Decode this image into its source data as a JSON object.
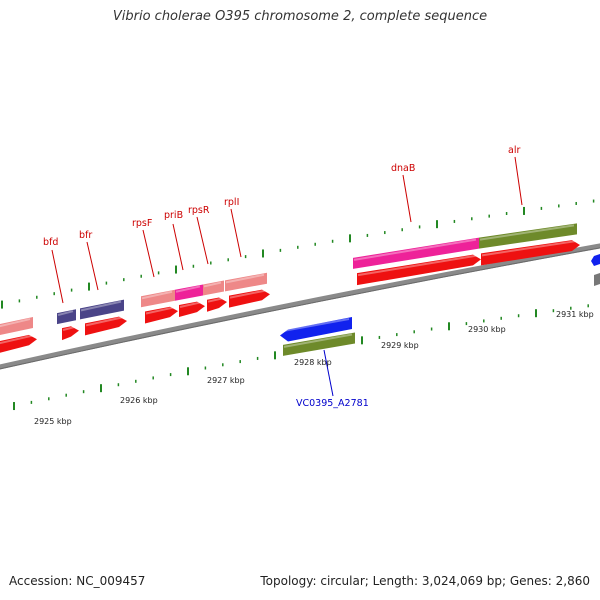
{
  "title": "Vibrio cholerae O395 chromosome 2, complete sequence",
  "accession": "Accession: NC_009457",
  "topology": "Topology: circular; Length: 3,024,069 bp; Genes: 2,860",
  "colors": {
    "backbone": "#8a8a8a",
    "gene_red": "#ee1111",
    "gene_pink": "#ee8888",
    "gene_magenta": "#ee2299",
    "gene_navy": "#4a4488",
    "gene_olive": "#6e8a2a",
    "gene_blue": "#1122ee",
    "tick": "#228822",
    "label_red": "#cc0000",
    "label_blue": "#0000cc"
  },
  "kbp_labels": [
    "2925 kbp",
    "2926 kbp",
    "2927 kbp",
    "2928 kbp",
    "2929 kbp",
    "2930 kbp",
    "2931 kbp"
  ],
  "gene_labels": [
    {
      "text": "bfd",
      "color": "label_red"
    },
    {
      "text": "bfr",
      "color": "label_red"
    },
    {
      "text": "rpsF",
      "color": "label_red"
    },
    {
      "text": "priB",
      "color": "label_red"
    },
    {
      "text": "rpsR",
      "color": "label_red"
    },
    {
      "text": "rplI",
      "color": "label_red"
    },
    {
      "text": "dnaB",
      "color": "label_red"
    },
    {
      "text": "alr",
      "color": "label_red"
    },
    {
      "text": "VC0395_A2781",
      "color": "label_blue"
    }
  ]
}
